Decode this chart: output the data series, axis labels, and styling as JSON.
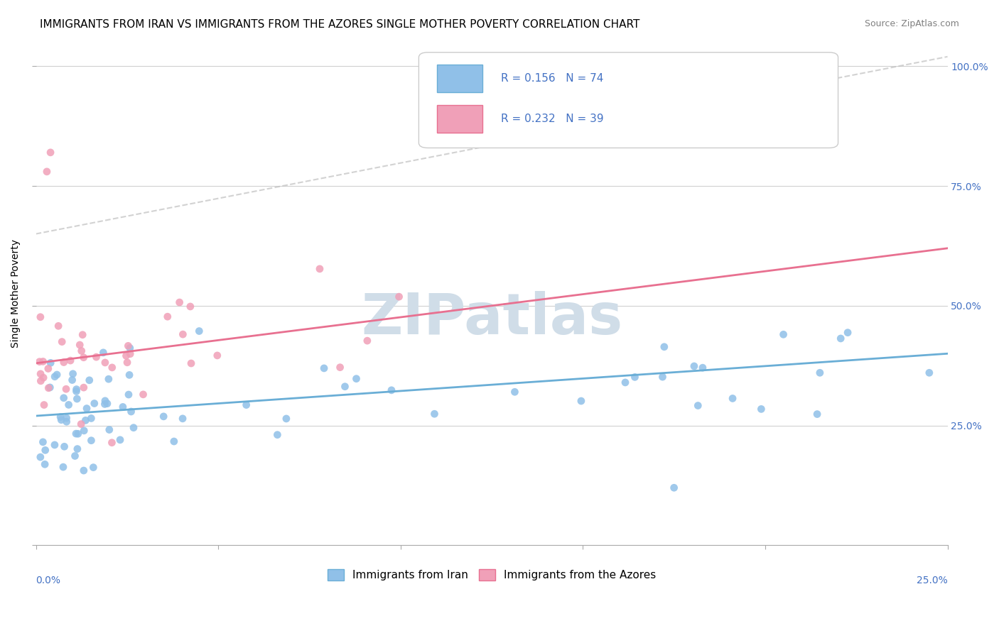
{
  "title": "IMMIGRANTS FROM IRAN VS IMMIGRANTS FROM THE AZORES SINGLE MOTHER POVERTY CORRELATION CHART",
  "source": "Source: ZipAtlas.com",
  "ylabel": "Single Mother Poverty",
  "legend1_label": "Immigrants from Iran",
  "legend2_label": "Immigrants from the Azores",
  "R1": "0.156",
  "N1": "74",
  "R2": "0.232",
  "N2": "39",
  "color_iran": "#90C0E8",
  "color_azores": "#F0A0B8",
  "color_trend_iran": "#6aaed6",
  "color_trend_azores": "#e87090",
  "color_trend_dashed": "#c0c0c0",
  "xlim": [
    0.0,
    0.25
  ],
  "ylim": [
    0.0,
    1.05
  ],
  "watermark": "ZIPatlas",
  "watermark_color": "#d0dde8",
  "background_color": "#ffffff",
  "title_fontsize": 11,
  "axis_label_fontsize": 10,
  "tick_fontsize": 10,
  "legend_fontsize": 11
}
